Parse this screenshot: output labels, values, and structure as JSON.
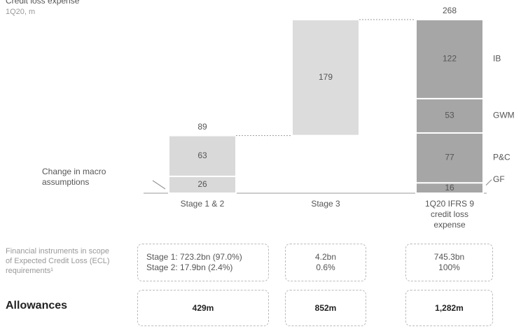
{
  "chart_data": {
    "type": "waterfall",
    "title": "Credit loss expense",
    "subtitle": "1Q20, m",
    "ylim": [
      0,
      268
    ],
    "bars": [
      {
        "category": "Stage 1 & 2",
        "segments": [
          26,
          63
        ],
        "total": 89,
        "color": "#d9d9d9"
      },
      {
        "category": "Stage 3",
        "segments": [
          179
        ],
        "color": "#dcdcdc"
      },
      {
        "category": "1Q20 IFRS 9 credit loss expense",
        "segments": [
          16,
          77,
          53,
          122
        ],
        "segment_labels": [
          "GF",
          "P&C",
          "GWM",
          "IB"
        ],
        "total": 268,
        "is_total": true,
        "color": "#a6a6a6"
      }
    ],
    "annotation": "Change in macro assumptions"
  },
  "table": {
    "rows": [
      {
        "label": "Financial instruments in scope of Expected Credit Loss (ECL) requirements¹",
        "cells": [
          [
            "Stage 1: 723.2bn (97.0%)",
            "Stage 2: 17.9bn (2.4%)"
          ],
          [
            "4.2bn",
            "0.6%"
          ],
          [
            "745.3bn",
            "100%"
          ]
        ]
      },
      {
        "label": "Allowances",
        "cells": [
          [
            "429m"
          ],
          [
            "852m"
          ],
          [
            "1,282m"
          ]
        ]
      }
    ]
  }
}
